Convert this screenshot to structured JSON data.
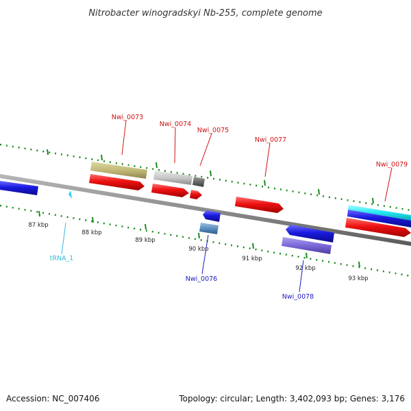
{
  "title": "Nitrobacter winogradskyi Nb-255, complete genome",
  "footer": {
    "accession": "Accession: NC_007406",
    "topology": "Topology: circular; Length: 3,402,093 bp; Genes: 3,176"
  },
  "ticks": [
    "87 kbp",
    "88 kbp",
    "89 kbp",
    "90 kbp",
    "91 kbp",
    "92 kbp",
    "93 kbp"
  ],
  "labels": {
    "nwi_0073": "Nwi_0073",
    "nwi_0074": "Nwi_0074",
    "nwi_0075": "Nwi_0075",
    "nwi_0077": "Nwi_0077",
    "nwi_0079": "Nwi_0079",
    "nwi_0076": "Nwi_0076",
    "nwi_0078": "Nwi_0078",
    "trna_1": "tRNA_1"
  },
  "colors": {
    "forward_cds": "#ee1111",
    "reverse_cds": "#1a1adf",
    "backbone": "#8c8c8c",
    "tick_marks": "#1a8a1a",
    "label_forward": "#d01010",
    "label_reverse": "#1a1ac0",
    "label_trna": "#33bbdd"
  }
}
